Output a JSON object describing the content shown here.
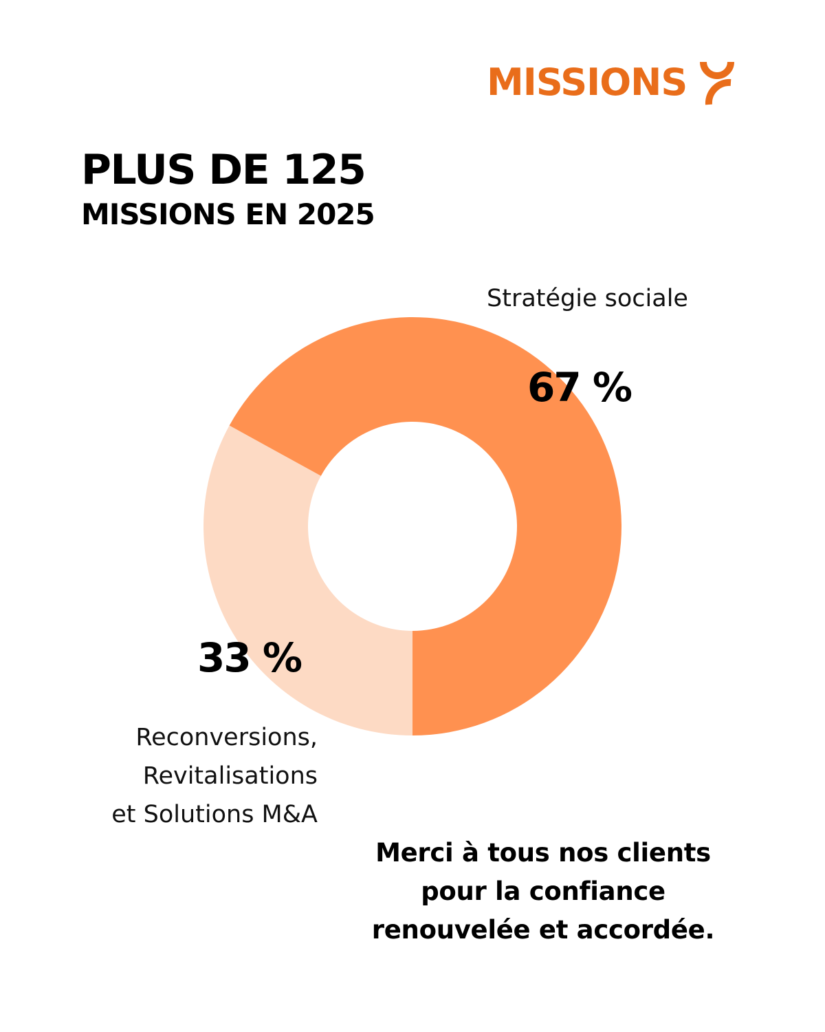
{
  "brand": {
    "name": "MISSIONS",
    "logo_icon": "missions-logo-mark",
    "color": "#E96D1A"
  },
  "headline": {
    "line1": "PLUS DE 125",
    "line2": "MISSIONS EN 2025"
  },
  "chart_data": {
    "type": "pie",
    "variant": "donut",
    "title": "PLUS DE 125 MISSIONS EN 2025",
    "categories": [
      "Stratégie sociale",
      "Reconversions, Revitalisations et Solutions M&A"
    ],
    "values": [
      67,
      33
    ],
    "unit": "%",
    "data_labels": [
      "67 %",
      "33 %"
    ],
    "colors": [
      "#FF9150",
      "#FDDAC4"
    ],
    "label_lines": {
      "strategie": [
        "Stratégie sociale"
      ],
      "reconversions": [
        "Reconversions,",
        "Revitalisations",
        "et Solutions M&A"
      ]
    },
    "legend": "none"
  },
  "thanks": {
    "lines": [
      "Merci à tous nos clients",
      "pour la confiance",
      "renouvelée et accordée."
    ]
  }
}
